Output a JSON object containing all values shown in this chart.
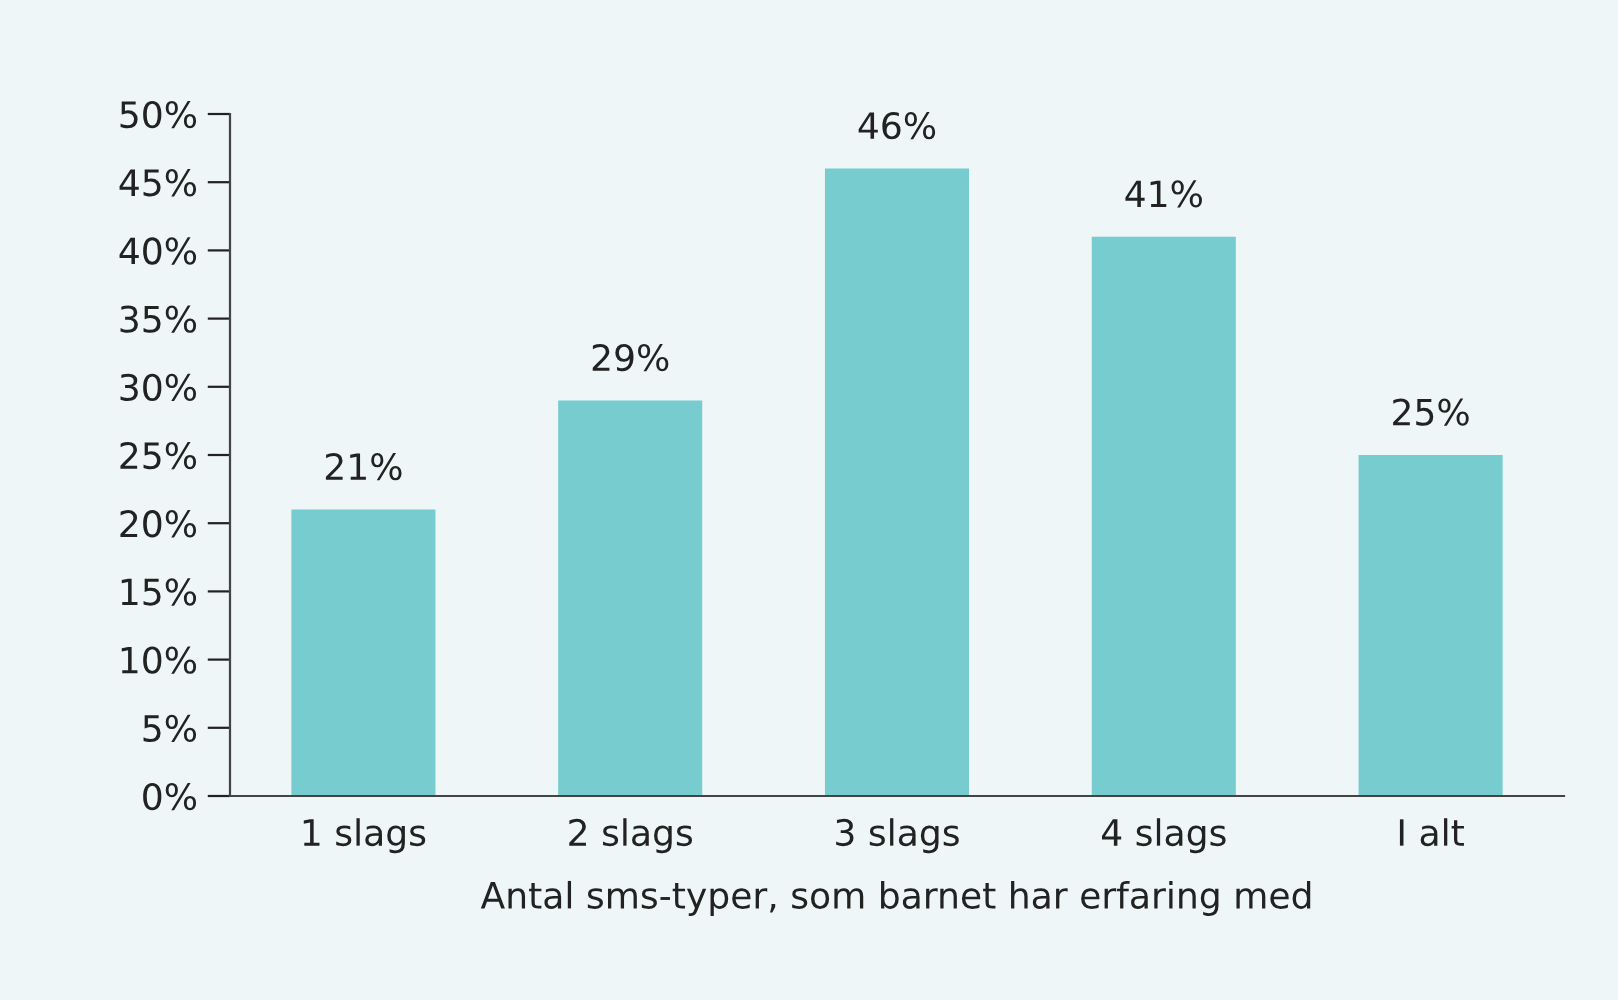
{
  "chart_data": {
    "type": "bar",
    "xlabel": "Antal sms-typer, som barnet har erfaring med",
    "categories": [
      "1 slags",
      "2 slags",
      "3 slags",
      "4 slags",
      "I alt"
    ],
    "values": [
      21,
      29,
      46,
      41,
      25
    ],
    "value_labels": [
      "21%",
      "29%",
      "46%",
      "41%",
      "25%"
    ],
    "color": "#77cccf",
    "ylim": [
      0,
      50
    ],
    "yticks": [
      {
        "value": 0,
        "label": "0%"
      },
      {
        "value": 5,
        "label": "5%"
      },
      {
        "value": 10,
        "label": "10%"
      },
      {
        "value": 15,
        "label": "15%"
      },
      {
        "value": 20,
        "label": "20%"
      },
      {
        "value": 25,
        "label": "25%"
      },
      {
        "value": 30,
        "label": "30%"
      },
      {
        "value": 35,
        "label": "35%"
      },
      {
        "value": 40,
        "label": "40%"
      },
      {
        "value": 45,
        "label": "45%"
      },
      {
        "value": 50,
        "label": "50%"
      }
    ],
    "grid": false,
    "legend": false
  }
}
